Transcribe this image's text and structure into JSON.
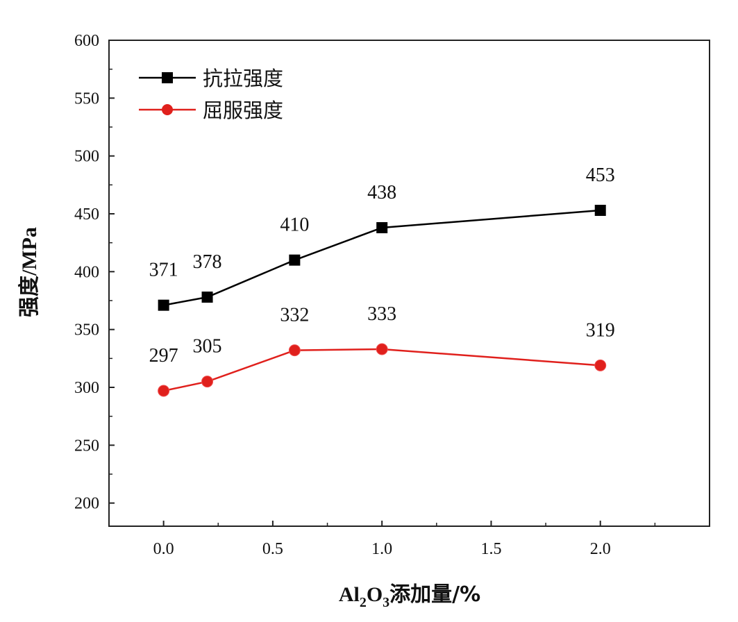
{
  "chart_data": {
    "type": "line",
    "x": [
      0.0,
      0.2,
      0.6,
      1.0,
      2.0
    ],
    "series": [
      {
        "name": "抗拉强度",
        "values": [
          371,
          378,
          410,
          438,
          453
        ],
        "color": "#000000",
        "marker": "square"
      },
      {
        "name": "屈服强度",
        "values": [
          297,
          305,
          332,
          333,
          319
        ],
        "color": "#e0201c",
        "marker": "circle"
      }
    ],
    "xlim": [
      -0.25,
      2.5
    ],
    "ylim": [
      180,
      600
    ],
    "xticks": [
      0.0,
      0.5,
      1.0,
      1.5,
      2.0
    ],
    "xtick_labels": [
      "0.0",
      "0.5",
      "1.0",
      "1.5",
      "2.0"
    ],
    "yticks": [
      200,
      250,
      300,
      350,
      400,
      450,
      500,
      550,
      600
    ],
    "ytick_labels": [
      "200",
      "250",
      "300",
      "350",
      "400",
      "450",
      "500",
      "550",
      "600"
    ],
    "xlabel": {
      "prefix": "Al",
      "sub1": "2",
      "mid": "O",
      "sub2": "3",
      "suffix": "添加量/%"
    },
    "ylabel": {
      "cjk": "强度",
      "rest": "/MPa"
    },
    "legend_position": "top-left",
    "grid": false
  }
}
